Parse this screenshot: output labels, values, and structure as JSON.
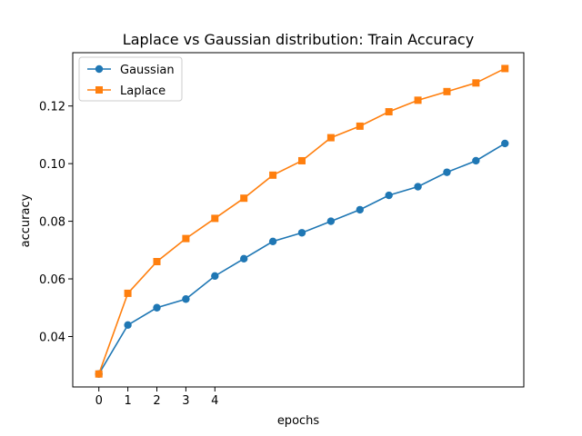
{
  "chart_data": {
    "type": "line",
    "title": "Laplace vs Gaussian distribution: Train Accuracy",
    "xlabel": "epochs",
    "ylabel": "accuracy",
    "x": [
      0,
      1,
      2,
      3,
      4,
      5,
      6,
      7,
      8,
      9,
      10,
      11,
      12,
      13,
      14
    ],
    "xtick_values": [
      0,
      1,
      2,
      3,
      4
    ],
    "xtick_labels": [
      "0",
      "1",
      "2",
      "3",
      "4"
    ],
    "xlim": [
      -0.9,
      14.65
    ],
    "ylim": [
      0.0225,
      0.1385
    ],
    "ytick_values": [
      0.04,
      0.06,
      0.08,
      0.1,
      0.12
    ],
    "ytick_labels": [
      "0.04",
      "0.06",
      "0.08",
      "0.10",
      "0.12"
    ],
    "grid": false,
    "legend_position": "top-left",
    "series": [
      {
        "name": "Gaussian",
        "color": "#1f77b4",
        "marker": "circle",
        "values": [
          0.027,
          0.044,
          0.05,
          0.053,
          0.061,
          0.067,
          0.073,
          0.076,
          0.08,
          0.084,
          0.089,
          0.092,
          0.097,
          0.101,
          0.107
        ]
      },
      {
        "name": "Laplace",
        "color": "#ff7f0e",
        "marker": "square",
        "values": [
          0.027,
          0.055,
          0.066,
          0.074,
          0.081,
          0.088,
          0.096,
          0.101,
          0.109,
          0.113,
          0.118,
          0.122,
          0.125,
          0.128,
          0.133
        ]
      }
    ]
  }
}
